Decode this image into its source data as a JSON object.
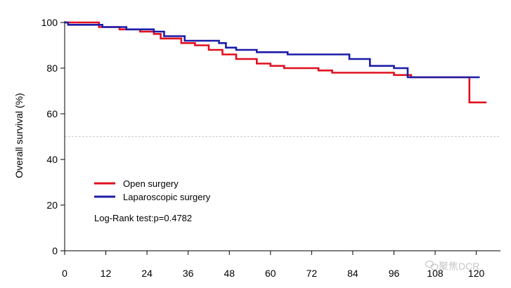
{
  "chart_data": {
    "type": "line",
    "subtype": "kaplan-meier step curve",
    "title": "",
    "xlabel": "",
    "ylabel": "Overall survival (%)",
    "xlim": [
      0,
      126
    ],
    "ylim": [
      0,
      100
    ],
    "x_ticks": [
      "0",
      "12",
      "24",
      "36",
      "48",
      "60",
      "72",
      "84",
      "96",
      "108",
      "120"
    ],
    "y_ticks": [
      "0",
      "20",
      "40",
      "60",
      "80",
      "100"
    ],
    "reference_line": {
      "y": 50,
      "style": "dashed",
      "color": "#cccccc"
    },
    "series": [
      {
        "name": "Open surgery",
        "color": "#e0101f",
        "x": [
          0,
          10,
          10,
          16,
          16,
          22,
          22,
          26,
          26,
          28,
          28,
          34,
          34,
          38,
          38,
          42,
          42,
          46,
          46,
          50,
          50,
          56,
          56,
          60,
          60,
          64,
          64,
          74,
          74,
          78,
          78,
          96,
          96,
          101,
          101,
          118,
          118,
          123
        ],
        "y": [
          100,
          100,
          98,
          98,
          97,
          97,
          96,
          96,
          95,
          95,
          93,
          93,
          91,
          91,
          90,
          90,
          88,
          88,
          86,
          86,
          84,
          84,
          82,
          82,
          81,
          81,
          80,
          80,
          79,
          79,
          78,
          78,
          77,
          77,
          76,
          76,
          65,
          65
        ]
      },
      {
        "name": "Laparoscopic surgery",
        "color": "#1c1ca8",
        "x": [
          0,
          1,
          1,
          11,
          11,
          18,
          18,
          26,
          26,
          29,
          29,
          35,
          35,
          45,
          45,
          47,
          47,
          50,
          50,
          56,
          56,
          65,
          65,
          83,
          83,
          89,
          89,
          96,
          96,
          100,
          100,
          121
        ],
        "y": [
          100,
          100,
          99,
          99,
          98,
          98,
          97,
          97,
          96,
          96,
          94,
          94,
          92,
          92,
          91,
          91,
          89,
          89,
          88,
          88,
          87,
          87,
          86,
          86,
          84,
          84,
          81,
          81,
          80,
          80,
          76,
          76
        ]
      }
    ],
    "legend": {
      "position": "lower-left",
      "entries": [
        "Open surgery",
        "Laparoscopic surgery"
      ]
    },
    "annotation": "Log-Rank test:p=0.4782"
  },
  "watermark": {
    "text": "聚焦DCR"
  },
  "colors": {
    "axis": "#000000",
    "grid_ref": "#cccccc"
  }
}
